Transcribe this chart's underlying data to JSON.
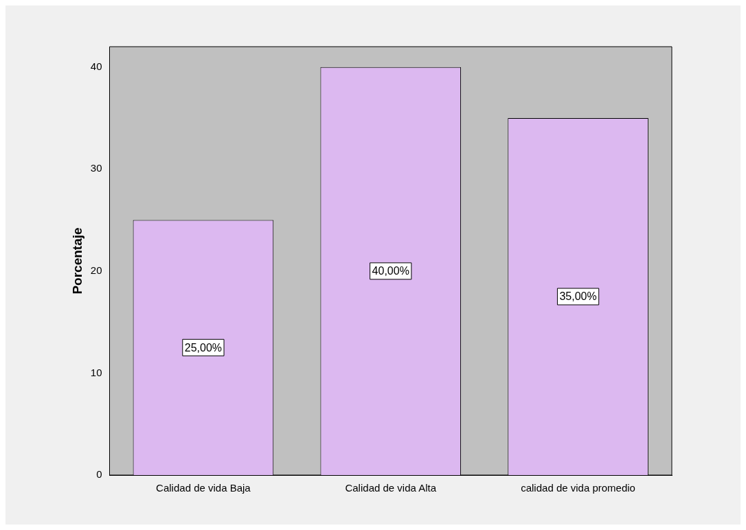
{
  "chart_data": {
    "type": "bar",
    "ylabel": "Porcentaje",
    "categories": [
      "Calidad de vida Baja",
      "Calidad de vida Alta",
      "calidad de vida promedio"
    ],
    "values": [
      25,
      40,
      35
    ],
    "value_labels": [
      "25,00%",
      "40,00%",
      "35,00%"
    ],
    "color": "#dcb8f0",
    "ylim": [
      0,
      42
    ],
    "yticks": [
      0,
      10,
      20,
      30,
      40
    ],
    "grid": false,
    "legend": false
  }
}
